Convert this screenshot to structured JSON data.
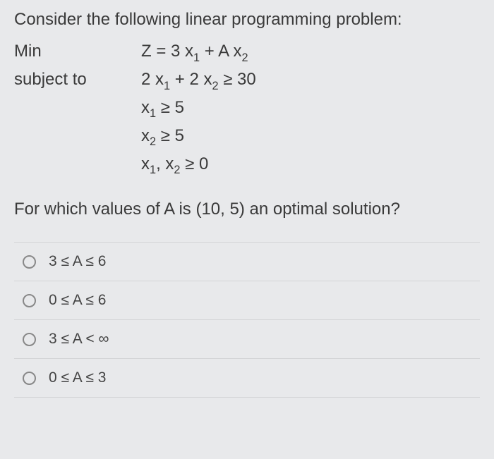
{
  "background_color": "#e8e9eb",
  "text_color": "#3a3a3a",
  "divider_color": "#d3d4d6",
  "radio_border_color": "#888888",
  "font_family": "Segoe UI, Arial, sans-serif",
  "base_font_size": 24,
  "option_font_size": 21,
  "problem": {
    "intro": "Consider the following linear programming problem:",
    "objective_label": "Min",
    "objective_expr": "Z = 3 x₁ + A x₂",
    "subject_label": "subject to",
    "constraints": [
      "2 x₁ + 2 x₂ ≥ 30",
      "x₁ ≥ 5",
      "x₂ ≥ 5",
      "x₁, x₂ ≥ 0"
    ],
    "question": "For which values of A is (10, 5) an optimal solution?"
  },
  "options": [
    {
      "label": "3 ≤ A ≤ 6",
      "selected": false
    },
    {
      "label": "0 ≤ A ≤ 6",
      "selected": false
    },
    {
      "label": "3 ≤ A < ∞",
      "selected": false
    },
    {
      "label": "0 ≤ A ≤ 3",
      "selected": false
    }
  ]
}
